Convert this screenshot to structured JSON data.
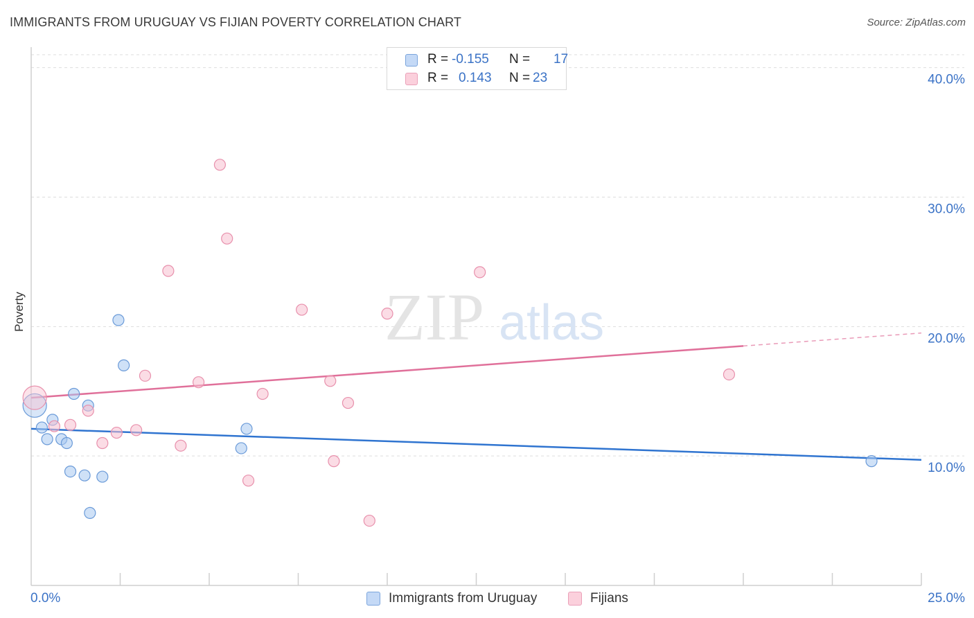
{
  "title": "IMMIGRANTS FROM URUGUAY VS FIJIAN POVERTY CORRELATION CHART",
  "source": "Source: ZipAtlas.com",
  "watermark": {
    "zip": "ZIP",
    "atlas": "atlas"
  },
  "legend_top": {
    "rows": [
      {
        "r_label": "R =",
        "r_value": "-0.155",
        "n_label": "N =",
        "n_value": "17"
      },
      {
        "r_label": "R =",
        "r_value": "0.143",
        "n_label": "N =",
        "n_value": "23"
      }
    ]
  },
  "colors": {
    "blue_fill": "#a8c8f0",
    "blue_stroke": "#6a9ad8",
    "blue_line": "#2f74d0",
    "pink_fill": "#f8c0d0",
    "pink_stroke": "#e890ac",
    "pink_line": "#e0709a",
    "axis_text": "#3a72c6",
    "grid": "#dddddd"
  },
  "chart_data": {
    "type": "scatter",
    "title": "IMMIGRANTS FROM URUGUAY VS FIJIAN POVERTY CORRELATION CHART",
    "xlabel": "",
    "ylabel": "Poverty",
    "xlim": [
      0,
      25
    ],
    "ylim": [
      0,
      41
    ],
    "x_tick_labels": [
      "0.0%",
      "25.0%"
    ],
    "y_ticks": [
      10,
      20,
      30,
      40
    ],
    "y_tick_labels": [
      "10.0%",
      "20.0%",
      "30.0%",
      "40.0%"
    ],
    "grid": true,
    "legend": "bottom",
    "series": [
      {
        "name": "Immigrants from Uruguay",
        "color": "#a8c8f0",
        "r": -0.155,
        "n": 17,
        "points": [
          [
            0.1,
            13.9,
            "large"
          ],
          [
            0.3,
            12.2
          ],
          [
            0.45,
            11.3
          ],
          [
            0.6,
            12.8
          ],
          [
            0.85,
            11.3
          ],
          [
            1.0,
            11.0
          ],
          [
            1.2,
            14.8
          ],
          [
            1.1,
            8.8
          ],
          [
            1.5,
            8.5
          ],
          [
            1.6,
            13.9
          ],
          [
            1.65,
            5.6
          ],
          [
            2.0,
            8.4
          ],
          [
            2.45,
            20.5
          ],
          [
            2.6,
            17.0
          ],
          [
            5.9,
            10.6
          ],
          [
            6.05,
            12.1
          ],
          [
            23.6,
            9.6
          ]
        ],
        "trend": {
          "x": [
            0,
            25
          ],
          "y": [
            12.1,
            9.7
          ],
          "solid_until": 25
        }
      },
      {
        "name": "Fijians",
        "color": "#f8c0d0",
        "r": 0.143,
        "n": 23,
        "points": [
          [
            0.1,
            14.5,
            "large"
          ],
          [
            0.65,
            12.3
          ],
          [
            1.1,
            12.4
          ],
          [
            1.6,
            13.5
          ],
          [
            2.0,
            11.0
          ],
          [
            2.4,
            11.8
          ],
          [
            2.95,
            12.0
          ],
          [
            3.2,
            16.2
          ],
          [
            3.85,
            24.3
          ],
          [
            4.2,
            10.8
          ],
          [
            4.7,
            15.7
          ],
          [
            5.3,
            32.5
          ],
          [
            5.5,
            26.8
          ],
          [
            6.1,
            8.1
          ],
          [
            6.5,
            14.8
          ],
          [
            7.6,
            21.3
          ],
          [
            8.4,
            15.8
          ],
          [
            8.5,
            9.6
          ],
          [
            8.9,
            14.1
          ],
          [
            9.5,
            5.0
          ],
          [
            10.0,
            21.0
          ],
          [
            12.6,
            24.2
          ],
          [
            19.6,
            16.3
          ]
        ],
        "trend": {
          "x": [
            0,
            25
          ],
          "y": [
            14.5,
            19.5
          ],
          "solid_until": 20.0
        }
      }
    ]
  }
}
